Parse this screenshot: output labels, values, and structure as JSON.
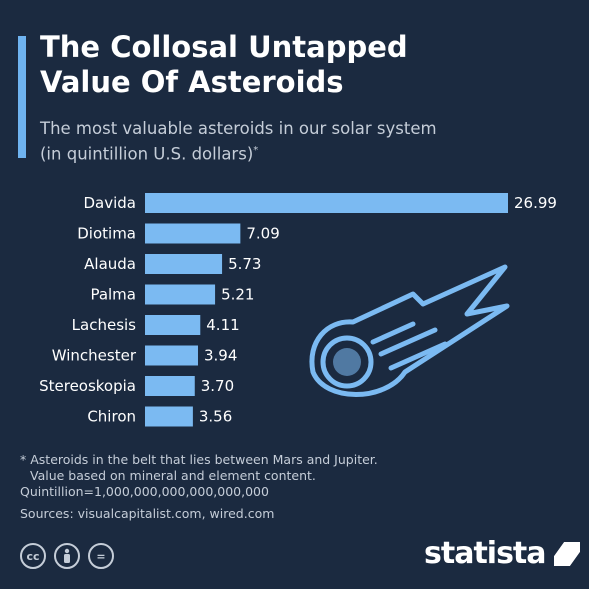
{
  "header": {
    "title_line1": "The Collosal Untapped",
    "title_line2": "Value Of Asteroids",
    "subtitle_line1": "The most valuable asteroids in our solar system",
    "subtitle_line2": "(in quintillion U.S. dollars)",
    "subtitle_marker": "*"
  },
  "chart_data": {
    "type": "bar",
    "orientation": "horizontal",
    "categories": [
      "Davida",
      "Diotima",
      "Alauda",
      "Palma",
      "Lachesis",
      "Winchester",
      "Stereoskopia",
      "Chiron"
    ],
    "values": [
      26.99,
      7.09,
      5.73,
      5.21,
      4.11,
      3.94,
      3.7,
      3.56
    ],
    "value_labels": [
      "26.99",
      "7.09",
      "5.73",
      "5.21",
      "4.11",
      "3.94",
      "3.70",
      "3.56"
    ],
    "xlim": [
      0,
      26.99
    ],
    "grid": false,
    "legend": "none",
    "bar_color": "#7bbaf2"
  },
  "footnotes": {
    "note_line1": "* Asteroids in the belt that lies between Mars and Jupiter.",
    "note_line2": "Value based on mineral and element content.",
    "note_line3": "Quintillion=1,000,000,000,000,000,000",
    "sources": "Sources: visualcapitalist.com, wired.com"
  },
  "branding": {
    "logo_text": "statista",
    "cc_icon_1": "cc",
    "cc_icon_3": "="
  },
  "colors": {
    "background": "#1b2a40",
    "accent": "#6fb3f0",
    "bar": "#7bbaf2",
    "text_secondary": "#c5cdd8"
  },
  "icons": [
    "comet-icon",
    "creative-commons-icon",
    "attribution-icon",
    "no-derivatives-icon",
    "statista-logo-icon"
  ]
}
